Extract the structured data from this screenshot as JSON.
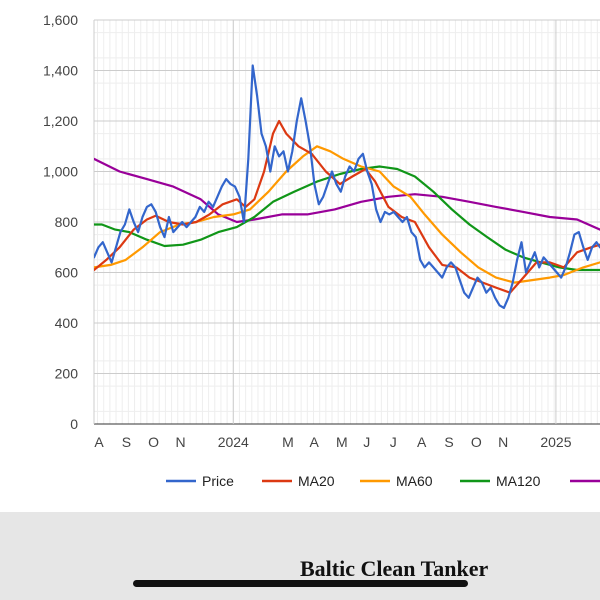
{
  "chart_data": {
    "type": "line",
    "title": "",
    "xlabel": "",
    "ylabel": "",
    "ylim": [
      0,
      1600
    ],
    "yticks": [
      "0",
      "200",
      "400",
      "600",
      "800",
      "1,000",
      "1,200",
      "1,400",
      "1,600"
    ],
    "xtick_labels": [
      "A",
      "S",
      "O",
      "N",
      "2024",
      "M",
      "A",
      "M",
      "J",
      "J",
      "A",
      "S",
      "O",
      "N",
      "2025"
    ],
    "x_range": [
      "2023-07-27",
      "2025-02-20"
    ],
    "legend_position": "bottom",
    "grid": true,
    "series": [
      {
        "name": "Price",
        "color": "#3366cc",
        "points": [
          [
            "2023-07-27",
            660
          ],
          [
            "2023-08-01",
            700
          ],
          [
            "2023-08-06",
            720
          ],
          [
            "2023-08-11",
            680
          ],
          [
            "2023-08-16",
            640
          ],
          [
            "2023-08-21",
            700
          ],
          [
            "2023-08-26",
            760
          ],
          [
            "2023-08-31",
            790
          ],
          [
            "2023-09-05",
            850
          ],
          [
            "2023-09-10",
            800
          ],
          [
            "2023-09-15",
            760
          ],
          [
            "2023-09-20",
            820
          ],
          [
            "2023-09-25",
            860
          ],
          [
            "2023-09-30",
            870
          ],
          [
            "2023-10-05",
            840
          ],
          [
            "2023-10-10",
            780
          ],
          [
            "2023-10-15",
            740
          ],
          [
            "2023-10-20",
            820
          ],
          [
            "2023-10-25",
            760
          ],
          [
            "2023-10-30",
            780
          ],
          [
            "2023-11-04",
            800
          ],
          [
            "2023-11-09",
            780
          ],
          [
            "2023-11-14",
            800
          ],
          [
            "2023-11-19",
            820
          ],
          [
            "2023-11-24",
            860
          ],
          [
            "2023-11-29",
            840
          ],
          [
            "2023-12-04",
            880
          ],
          [
            "2023-12-09",
            860
          ],
          [
            "2023-12-14",
            900
          ],
          [
            "2023-12-19",
            940
          ],
          [
            "2023-12-24",
            970
          ],
          [
            "2023-12-29",
            950
          ],
          [
            "2024-01-03",
            940
          ],
          [
            "2024-01-08",
            900
          ],
          [
            "2024-01-13",
            800
          ],
          [
            "2024-01-18",
            1050
          ],
          [
            "2024-01-23",
            1420
          ],
          [
            "2024-01-28",
            1300
          ],
          [
            "2024-02-02",
            1150
          ],
          [
            "2024-02-07",
            1100
          ],
          [
            "2024-02-12",
            1000
          ],
          [
            "2024-02-17",
            1100
          ],
          [
            "2024-02-22",
            1060
          ],
          [
            "2024-02-27",
            1080
          ],
          [
            "2024-03-03",
            1000
          ],
          [
            "2024-03-08",
            1080
          ],
          [
            "2024-03-13",
            1200
          ],
          [
            "2024-03-18",
            1290
          ],
          [
            "2024-03-23",
            1200
          ],
          [
            "2024-03-28",
            1100
          ],
          [
            "2024-04-02",
            950
          ],
          [
            "2024-04-07",
            870
          ],
          [
            "2024-04-12",
            900
          ],
          [
            "2024-04-17",
            950
          ],
          [
            "2024-04-22",
            1000
          ],
          [
            "2024-04-27",
            950
          ],
          [
            "2024-05-02",
            920
          ],
          [
            "2024-05-07",
            980
          ],
          [
            "2024-05-12",
            1020
          ],
          [
            "2024-05-17",
            1000
          ],
          [
            "2024-05-22",
            1050
          ],
          [
            "2024-05-27",
            1070
          ],
          [
            "2024-06-01",
            1000
          ],
          [
            "2024-06-06",
            950
          ],
          [
            "2024-06-11",
            850
          ],
          [
            "2024-06-16",
            800
          ],
          [
            "2024-06-21",
            840
          ],
          [
            "2024-06-26",
            830
          ],
          [
            "2024-07-01",
            840
          ],
          [
            "2024-07-06",
            820
          ],
          [
            "2024-07-11",
            800
          ],
          [
            "2024-07-16",
            820
          ],
          [
            "2024-07-21",
            760
          ],
          [
            "2024-07-26",
            740
          ],
          [
            "2024-07-31",
            650
          ],
          [
            "2024-08-05",
            620
          ],
          [
            "2024-08-10",
            640
          ],
          [
            "2024-08-15",
            620
          ],
          [
            "2024-08-20",
            600
          ],
          [
            "2024-08-25",
            580
          ],
          [
            "2024-08-30",
            620
          ],
          [
            "2024-09-04",
            640
          ],
          [
            "2024-09-09",
            620
          ],
          [
            "2024-09-14",
            570
          ],
          [
            "2024-09-19",
            520
          ],
          [
            "2024-09-24",
            500
          ],
          [
            "2024-09-29",
            540
          ],
          [
            "2024-10-04",
            580
          ],
          [
            "2024-10-09",
            560
          ],
          [
            "2024-10-14",
            520
          ],
          [
            "2024-10-19",
            540
          ],
          [
            "2024-10-24",
            500
          ],
          [
            "2024-10-29",
            470
          ],
          [
            "2024-11-03",
            460
          ],
          [
            "2024-11-08",
            500
          ],
          [
            "2024-11-13",
            560
          ],
          [
            "2024-11-18",
            650
          ],
          [
            "2024-11-23",
            720
          ],
          [
            "2024-11-28",
            600
          ],
          [
            "2024-12-03",
            640
          ],
          [
            "2024-12-08",
            680
          ],
          [
            "2024-12-13",
            620
          ],
          [
            "2024-12-18",
            660
          ],
          [
            "2024-12-23",
            640
          ],
          [
            "2024-12-28",
            620
          ],
          [
            "2025-01-02",
            600
          ],
          [
            "2025-01-07",
            580
          ],
          [
            "2025-01-12",
            620
          ],
          [
            "2025-01-17",
            680
          ],
          [
            "2025-01-22",
            750
          ],
          [
            "2025-01-27",
            760
          ],
          [
            "2025-02-01",
            700
          ],
          [
            "2025-02-06",
            650
          ],
          [
            "2025-02-11",
            700
          ],
          [
            "2025-02-16",
            720
          ],
          [
            "2025-02-20",
            700
          ]
        ]
      },
      {
        "name": "MA20",
        "color": "#dc3912",
        "points": [
          [
            "2023-07-27",
            610
          ],
          [
            "2023-08-10",
            650
          ],
          [
            "2023-08-25",
            700
          ],
          [
            "2023-09-10",
            770
          ],
          [
            "2023-09-25",
            810
          ],
          [
            "2023-10-05",
            825
          ],
          [
            "2023-10-20",
            800
          ],
          [
            "2023-11-05",
            790
          ],
          [
            "2023-11-20",
            800
          ],
          [
            "2023-12-05",
            830
          ],
          [
            "2023-12-20",
            870
          ],
          [
            "2024-01-05",
            890
          ],
          [
            "2024-01-15",
            860
          ],
          [
            "2024-01-25",
            890
          ],
          [
            "2024-02-05",
            1000
          ],
          [
            "2024-02-15",
            1150
          ],
          [
            "2024-02-22",
            1200
          ],
          [
            "2024-03-01",
            1150
          ],
          [
            "2024-03-15",
            1100
          ],
          [
            "2024-03-30",
            1070
          ],
          [
            "2024-04-15",
            1000
          ],
          [
            "2024-05-01",
            950
          ],
          [
            "2024-05-15",
            980
          ],
          [
            "2024-05-30",
            1010
          ],
          [
            "2024-06-10",
            960
          ],
          [
            "2024-06-25",
            860
          ],
          [
            "2024-07-10",
            820
          ],
          [
            "2024-07-25",
            800
          ],
          [
            "2024-08-10",
            700
          ],
          [
            "2024-08-25",
            630
          ],
          [
            "2024-09-10",
            620
          ],
          [
            "2024-09-25",
            580
          ],
          [
            "2024-10-10",
            560
          ],
          [
            "2024-10-25",
            540
          ],
          [
            "2024-11-10",
            520
          ],
          [
            "2024-11-25",
            580
          ],
          [
            "2024-12-10",
            640
          ],
          [
            "2024-12-25",
            640
          ],
          [
            "2025-01-10",
            620
          ],
          [
            "2025-01-25",
            680
          ],
          [
            "2025-02-10",
            700
          ],
          [
            "2025-02-20",
            710
          ]
        ]
      },
      {
        "name": "MA60",
        "color": "#ff9900",
        "points": [
          [
            "2023-07-27",
            620
          ],
          [
            "2023-08-15",
            630
          ],
          [
            "2023-09-01",
            650
          ],
          [
            "2023-09-20",
            700
          ],
          [
            "2023-10-10",
            760
          ],
          [
            "2023-11-01",
            790
          ],
          [
            "2023-11-20",
            800
          ],
          [
            "2023-12-10",
            820
          ],
          [
            "2024-01-01",
            830
          ],
          [
            "2024-01-20",
            850
          ],
          [
            "2024-02-10",
            920
          ],
          [
            "2024-03-01",
            1000
          ],
          [
            "2024-03-20",
            1060
          ],
          [
            "2024-04-05",
            1100
          ],
          [
            "2024-04-20",
            1080
          ],
          [
            "2024-05-05",
            1050
          ],
          [
            "2024-05-25",
            1020
          ],
          [
            "2024-06-15",
            1000
          ],
          [
            "2024-07-01",
            940
          ],
          [
            "2024-07-20",
            900
          ],
          [
            "2024-08-05",
            830
          ],
          [
            "2024-08-25",
            750
          ],
          [
            "2024-09-15",
            680
          ],
          [
            "2024-10-05",
            620
          ],
          [
            "2024-10-25",
            580
          ],
          [
            "2024-11-15",
            560
          ],
          [
            "2024-12-05",
            570
          ],
          [
            "2024-12-25",
            580
          ],
          [
            "2025-01-10",
            590
          ],
          [
            "2025-02-01",
            620
          ],
          [
            "2025-02-20",
            640
          ]
        ]
      },
      {
        "name": "MA120",
        "color": "#109618",
        "points": [
          [
            "2023-07-27",
            790
          ],
          [
            "2023-08-05",
            790
          ],
          [
            "2023-08-20",
            770
          ],
          [
            "2023-09-05",
            760
          ],
          [
            "2023-09-25",
            730
          ],
          [
            "2023-10-15",
            705
          ],
          [
            "2023-11-05",
            710
          ],
          [
            "2023-11-25",
            730
          ],
          [
            "2023-12-15",
            760
          ],
          [
            "2024-01-05",
            780
          ],
          [
            "2024-01-25",
            820
          ],
          [
            "2024-02-15",
            880
          ],
          [
            "2024-03-10",
            920
          ],
          [
            "2024-04-05",
            960
          ],
          [
            "2024-05-01",
            990
          ],
          [
            "2024-05-25",
            1010
          ],
          [
            "2024-06-15",
            1020
          ],
          [
            "2024-07-05",
            1010
          ],
          [
            "2024-07-25",
            980
          ],
          [
            "2024-08-15",
            920
          ],
          [
            "2024-09-05",
            850
          ],
          [
            "2024-09-25",
            790
          ],
          [
            "2024-10-15",
            740
          ],
          [
            "2024-11-05",
            690
          ],
          [
            "2024-11-25",
            660
          ],
          [
            "2024-12-15",
            640
          ],
          [
            "2025-01-05",
            620
          ],
          [
            "2025-01-25",
            610
          ],
          [
            "2025-02-20",
            610
          ]
        ]
      },
      {
        "name": "",
        "color": "#990099",
        "points": [
          [
            "2023-07-27",
            1050
          ],
          [
            "2023-08-25",
            1000
          ],
          [
            "2023-09-25",
            970
          ],
          [
            "2023-10-25",
            940
          ],
          [
            "2023-11-25",
            890
          ],
          [
            "2023-12-15",
            830
          ],
          [
            "2024-01-05",
            800
          ],
          [
            "2024-01-25",
            810
          ],
          [
            "2024-02-25",
            830
          ],
          [
            "2024-03-25",
            830
          ],
          [
            "2024-04-25",
            850
          ],
          [
            "2024-05-25",
            880
          ],
          [
            "2024-06-25",
            900
          ],
          [
            "2024-07-25",
            910
          ],
          [
            "2024-08-25",
            900
          ],
          [
            "2024-09-25",
            880
          ],
          [
            "2024-10-25",
            860
          ],
          [
            "2024-11-25",
            840
          ],
          [
            "2024-12-25",
            820
          ],
          [
            "2025-01-25",
            810
          ],
          [
            "2025-02-20",
            770
          ]
        ]
      }
    ],
    "legend": [
      {
        "label": "Price",
        "color": "#3366cc"
      },
      {
        "label": "MA20",
        "color": "#dc3912"
      },
      {
        "label": "MA60",
        "color": "#ff9900"
      },
      {
        "label": "MA120",
        "color": "#109618"
      },
      {
        "label": "",
        "color": "#990099"
      }
    ]
  },
  "footer": {
    "title": "Baltic Clean Tanker"
  }
}
